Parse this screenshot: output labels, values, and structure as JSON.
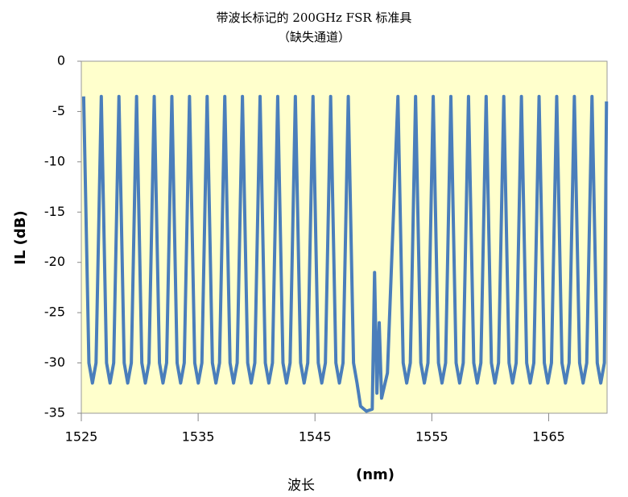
{
  "chart_data": {
    "type": "line",
    "title": "带波长标记的 200GHz FSR 标准具",
    "subtitle": "（缺失通道）",
    "ylabel": "IL (dB)",
    "xlabel": "(nm)",
    "xlabel_zh": "波长",
    "xlim": [
      1525,
      1570
    ],
    "xticks": [
      1525,
      1535,
      1545,
      1555,
      1565
    ],
    "ylim": [
      -35,
      0
    ],
    "yticks": [
      0,
      -5,
      -10,
      -15,
      -20,
      -25,
      -30,
      -35
    ],
    "grid": false,
    "background": "#ffffcc",
    "series": [
      {
        "name": "IL",
        "color": "#4a7ebb",
        "x": [
          1525.2,
          1525.65,
          1525.95,
          1526.26,
          1526.71,
          1527.16,
          1527.46,
          1527.77,
          1528.22,
          1528.67,
          1528.97,
          1529.28,
          1529.73,
          1530.18,
          1530.48,
          1530.79,
          1531.24,
          1531.69,
          1531.99,
          1532.3,
          1532.75,
          1533.2,
          1533.5,
          1533.81,
          1534.26,
          1534.71,
          1535.01,
          1535.32,
          1535.77,
          1536.22,
          1536.52,
          1536.83,
          1537.28,
          1537.73,
          1538.03,
          1538.34,
          1538.79,
          1539.24,
          1539.54,
          1539.85,
          1540.3,
          1540.75,
          1541.05,
          1541.36,
          1541.81,
          1542.26,
          1542.56,
          1542.87,
          1543.32,
          1543.77,
          1544.07,
          1544.38,
          1544.83,
          1545.28,
          1545.58,
          1545.89,
          1546.34,
          1546.79,
          1547.09,
          1547.4,
          1547.85,
          1548.3,
          1548.6,
          1548.9,
          1549.4,
          1549.9,
          1550.1,
          1550.3,
          1550.5,
          1550.7,
          1551.2,
          1552.1,
          1552.55,
          1552.85,
          1553.16,
          1553.61,
          1554.06,
          1554.36,
          1554.67,
          1555.12,
          1555.57,
          1555.87,
          1556.18,
          1556.63,
          1557.08,
          1557.38,
          1557.69,
          1558.14,
          1558.59,
          1558.89,
          1559.2,
          1559.65,
          1560.1,
          1560.4,
          1560.71,
          1561.16,
          1561.61,
          1561.91,
          1562.22,
          1562.67,
          1563.12,
          1563.42,
          1563.73,
          1564.18,
          1564.63,
          1564.93,
          1565.24,
          1565.69,
          1566.14,
          1566.44,
          1566.75,
          1567.2,
          1567.65,
          1567.95,
          1568.26,
          1568.71,
          1569.16,
          1569.46,
          1569.77,
          1569.95
        ],
        "values": [
          -3.5,
          -30,
          -32,
          -30,
          -3.5,
          -30,
          -32,
          -30,
          -3.5,
          -30,
          -32,
          -30,
          -3.5,
          -30,
          -32,
          -30,
          -3.5,
          -30,
          -32,
          -30,
          -3.5,
          -30,
          -32,
          -30,
          -3.5,
          -30,
          -32,
          -30,
          -3.5,
          -30,
          -32,
          -30,
          -3.5,
          -30,
          -32,
          -30,
          -3.5,
          -30,
          -32,
          -30,
          -3.5,
          -30,
          -32,
          -30,
          -3.5,
          -30,
          -32,
          -30,
          -3.5,
          -30,
          -32,
          -30,
          -3.5,
          -30,
          -32,
          -30,
          -3.5,
          -30,
          -32,
          -30,
          -3.5,
          -30,
          -32,
          -34.3,
          -34.8,
          -34.6,
          -21,
          -33,
          -26,
          -33.5,
          -31,
          -3.5,
          -30,
          -32,
          -30,
          -3.5,
          -30,
          -32,
          -30,
          -3.5,
          -30,
          -32,
          -30,
          -3.5,
          -30,
          -32,
          -30,
          -3.5,
          -30,
          -32,
          -30,
          -3.5,
          -30,
          -32,
          -30,
          -3.5,
          -30,
          -32,
          -30,
          -3.5,
          -30,
          -32,
          -30,
          -3.5,
          -30,
          -32,
          -30,
          -3.5,
          -30,
          -32,
          -30,
          -3.5,
          -30,
          -32,
          -30,
          -3.5,
          -30,
          -32,
          -30,
          -4
        ]
      }
    ]
  }
}
